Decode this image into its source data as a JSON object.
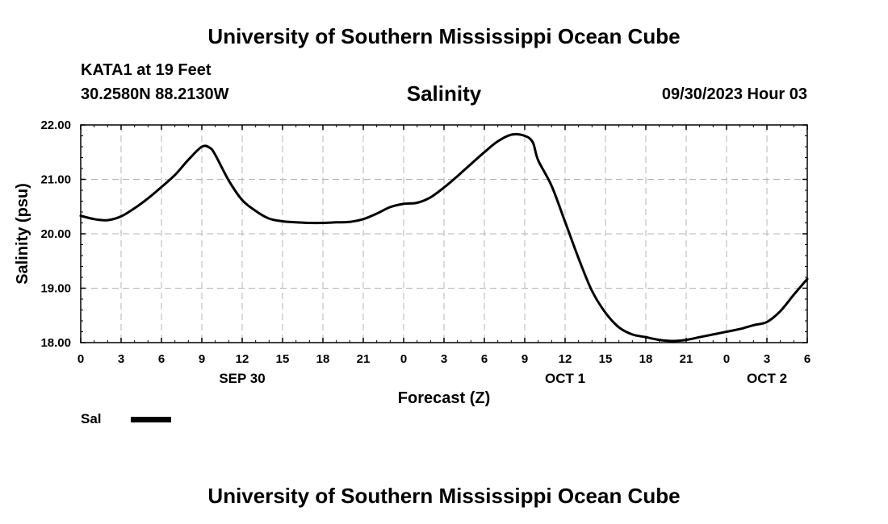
{
  "header": {
    "title": "University of Southern Mississippi Ocean Cube",
    "station": "KATA1 at 19 Feet",
    "coords": "30.2580N  88.2130W",
    "variable": "Salinity",
    "datetime": "09/30/2023 Hour 03"
  },
  "footer": {
    "title": "University of Southern Mississippi Ocean Cube"
  },
  "legend": {
    "label": "Sal"
  },
  "chart_data": {
    "type": "line",
    "title": "Salinity",
    "xlabel": "Forecast (Z)",
    "ylabel": "Salinity (psu)",
    "xlim": [
      0,
      54
    ],
    "ylim": [
      18.0,
      22.0
    ],
    "grid": true,
    "yticks": [
      "18.00",
      "19.00",
      "20.00",
      "21.00",
      "22.00"
    ],
    "xticks": [
      {
        "x": 0,
        "label": "0"
      },
      {
        "x": 3,
        "label": "3"
      },
      {
        "x": 6,
        "label": "6"
      },
      {
        "x": 9,
        "label": "9"
      },
      {
        "x": 12,
        "label": "12"
      },
      {
        "x": 15,
        "label": "15"
      },
      {
        "x": 18,
        "label": "18"
      },
      {
        "x": 21,
        "label": "21"
      },
      {
        "x": 24,
        "label": "0"
      },
      {
        "x": 27,
        "label": "3"
      },
      {
        "x": 30,
        "label": "6"
      },
      {
        "x": 33,
        "label": "9"
      },
      {
        "x": 36,
        "label": "12"
      },
      {
        "x": 39,
        "label": "15"
      },
      {
        "x": 42,
        "label": "18"
      },
      {
        "x": 45,
        "label": "21"
      },
      {
        "x": 48,
        "label": "0"
      },
      {
        "x": 51,
        "label": "3"
      },
      {
        "x": 54,
        "label": "6"
      }
    ],
    "date_labels": [
      {
        "x": 12,
        "label": "SEP 30"
      },
      {
        "x": 36,
        "label": "OCT 1"
      },
      {
        "x": 51,
        "label": "OCT 2"
      }
    ],
    "series": [
      {
        "name": "Sal",
        "x": [
          0,
          1,
          2,
          3,
          4,
          5,
          6,
          7,
          8,
          9,
          9.6,
          10,
          11,
          12,
          13,
          14,
          15,
          16,
          17,
          18,
          19,
          20,
          21,
          22,
          23,
          24,
          25,
          26,
          27,
          28,
          29,
          30,
          31,
          32,
          33,
          33.6,
          34,
          35,
          36,
          37,
          38,
          39,
          40,
          41,
          42,
          43,
          44,
          45,
          46,
          47,
          48,
          49,
          50,
          51,
          52,
          53,
          54
        ],
        "values": [
          20.33,
          20.27,
          20.25,
          20.32,
          20.47,
          20.65,
          20.86,
          21.08,
          21.36,
          21.6,
          21.58,
          21.45,
          20.98,
          20.62,
          20.42,
          20.28,
          20.23,
          20.21,
          20.2,
          20.2,
          20.21,
          20.22,
          20.27,
          20.37,
          20.49,
          20.55,
          20.57,
          20.67,
          20.85,
          21.06,
          21.28,
          21.5,
          21.7,
          21.82,
          21.8,
          21.68,
          21.35,
          20.88,
          20.22,
          19.55,
          18.95,
          18.55,
          18.28,
          18.15,
          18.1,
          18.05,
          18.03,
          18.05,
          18.1,
          18.15,
          18.2,
          18.25,
          18.32,
          18.38,
          18.58,
          18.88,
          19.17
        ]
      }
    ]
  }
}
